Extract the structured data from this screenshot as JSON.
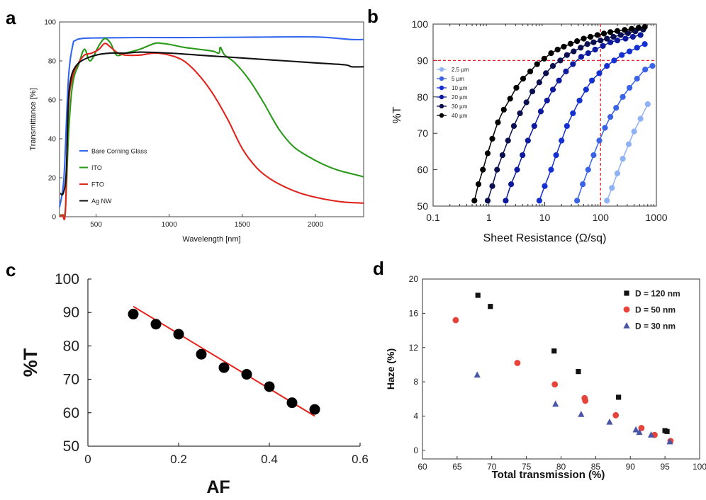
{
  "panels": [
    {
      "letter": "a"
    },
    {
      "letter": "b"
    },
    {
      "letter": "c"
    },
    {
      "letter": "d"
    }
  ],
  "chart_data": [
    {
      "type": "line",
      "xlabel": "Wavelength [nm]",
      "ylabel": "Transmittance [%]",
      "xlim": [
        250,
        2330
      ],
      "ylim": [
        0,
        100
      ],
      "xticks": [
        "500",
        "1000",
        "1500",
        "2000"
      ],
      "yticks": [
        "0",
        "20",
        "40",
        "60",
        "80",
        "100"
      ],
      "legend_position": "center-left",
      "series": [
        {
          "name": "Bare Corning Glass",
          "color": "#3366ee",
          "x": [
            250,
            280,
            310,
            340,
            360,
            400,
            500,
            800,
            1200,
            1600,
            2000,
            2250,
            2330
          ],
          "y": [
            5,
            20,
            70,
            88,
            90.5,
            91.5,
            91.8,
            92,
            92,
            92.2,
            92.3,
            91,
            91
          ]
        },
        {
          "name": "ITO",
          "color": "#2a9a1a",
          "x": [
            250,
            270,
            290,
            310,
            330,
            350,
            380,
            420,
            460,
            520,
            560,
            600,
            640,
            700,
            800,
            900,
            950,
            1000,
            1100,
            1200,
            1300,
            1340,
            1350,
            1380,
            1450,
            1550,
            1650,
            1750,
            1850,
            1950,
            2050,
            2150,
            2250,
            2330
          ],
          "y": [
            1,
            1,
            4,
            40,
            62,
            72,
            78,
            86,
            80,
            88,
            91.5,
            89,
            83,
            84,
            86,
            89,
            89,
            88.5,
            87,
            86,
            85,
            84,
            87,
            83,
            79,
            70,
            58,
            45,
            36,
            31,
            27,
            24,
            22,
            20.5
          ]
        },
        {
          "name": "FTO",
          "color": "#e0241e",
          "x": [
            250,
            270,
            290,
            310,
            340,
            380,
            420,
            470,
            520,
            560,
            600,
            650,
            700,
            800,
            900,
            1000,
            1100,
            1200,
            1300,
            1400,
            1500,
            1600,
            1700,
            1800,
            1900,
            2000,
            2100,
            2200,
            2330
          ],
          "y": [
            0,
            1,
            3,
            55,
            72,
            79,
            83,
            84,
            86,
            89,
            87,
            84,
            83,
            83,
            84,
            83,
            80,
            73,
            63,
            50,
            35,
            25,
            19,
            15,
            12,
            10,
            8.5,
            7.5,
            7
          ]
        },
        {
          "name": "Ag NW",
          "color": "#111111",
          "x": [
            255,
            275,
            295,
            310,
            325,
            350,
            400,
            500,
            600,
            700,
            800,
            1000,
            1200,
            1400,
            1600,
            1800,
            2000,
            2200,
            2250,
            2330
          ],
          "y": [
            12,
            12,
            22,
            58,
            70,
            76,
            80,
            83,
            84,
            84,
            84.5,
            84,
            83,
            82,
            81,
            80,
            79,
            78,
            77,
            77
          ]
        }
      ]
    },
    {
      "type": "line",
      "xscale": "log",
      "xlabel": "Sheet Resistance (Ω/sq)",
      "ylabel": "%T",
      "xlim": [
        0.1,
        1000
      ],
      "ylim": [
        50,
        100
      ],
      "xticks": [
        "0.1",
        "1",
        "10",
        "100",
        "1000"
      ],
      "yticks": [
        "50",
        "60",
        "70",
        "80",
        "90",
        "100"
      ],
      "reference_lines": {
        "x": 100,
        "y": 90,
        "color": "#e8202a",
        "style": "dashed"
      },
      "legend_position": "upper-left",
      "series": [
        {
          "name": "2.5 µm",
          "color": "#8fb2f5",
          "x": [
            130,
            160,
            200,
            250,
            320,
            400,
            520,
            700
          ],
          "y": [
            51.5,
            55,
            59,
            63,
            67,
            70.5,
            74,
            78
          ]
        },
        {
          "name": "5 µm",
          "color": "#3a63e6",
          "x": [
            38,
            48,
            60,
            75,
            95,
            120,
            150,
            190,
            250,
            330,
            450,
            630,
            850
          ],
          "y": [
            51.5,
            56,
            60,
            64,
            68,
            71.5,
            74.5,
            77,
            80,
            82.5,
            85,
            87.5,
            88.5
          ]
        },
        {
          "name": "10 µm",
          "color": "#1530d0",
          "x": [
            8,
            10,
            13,
            16,
            20,
            25,
            32,
            42,
            55,
            70,
            95,
            130,
            175,
            240,
            330,
            450,
            620
          ],
          "y": [
            51.5,
            55.5,
            60,
            64,
            68,
            72,
            75.5,
            79,
            82,
            84.5,
            86.5,
            88.5,
            90,
            91.5,
            92.5,
            93.5,
            94.5
          ]
        },
        {
          "name": "20 µm",
          "color": "#0d1a9e",
          "x": [
            2,
            2.5,
            3.2,
            4,
            5,
            6.5,
            8.5,
            11,
            14,
            18,
            24,
            32,
            45,
            60,
            80,
            110,
            150,
            200,
            280,
            380,
            520
          ],
          "y": [
            51.5,
            56,
            60,
            64,
            68,
            72,
            76,
            79,
            82,
            84.5,
            87,
            89,
            91,
            92,
            93,
            94,
            95,
            95.5,
            96,
            96.5,
            97
          ]
        },
        {
          "name": "30 µm",
          "color": "#0a0f50",
          "x": [
            0.95,
            1.15,
            1.4,
            1.75,
            2.2,
            2.8,
            3.6,
            4.7,
            6,
            8,
            10.5,
            14,
            19,
            25,
            33,
            44,
            58,
            75,
            100,
            130,
            170,
            230,
            310,
            420,
            580
          ],
          "y": [
            51.5,
            55.5,
            60,
            64,
            68,
            72,
            75.5,
            78.5,
            81.5,
            84,
            86.5,
            88.5,
            90,
            91.5,
            92.5,
            93.5,
            94.5,
            95,
            95.5,
            96,
            96.5,
            97,
            97.5,
            98,
            98.5
          ]
        },
        {
          "name": "40 µm",
          "color": "#000000",
          "x": [
            0.55,
            0.65,
            0.78,
            0.95,
            1.15,
            1.45,
            1.85,
            2.4,
            3.1,
            4.1,
            5.5,
            7.3,
            9.8,
            13,
            17,
            22,
            29,
            38,
            50,
            66,
            88,
            115,
            150,
            200,
            270,
            360,
            480,
            620
          ],
          "y": [
            51.5,
            56,
            60,
            64.5,
            68.5,
            73,
            76.5,
            79.5,
            82.5,
            85,
            87,
            89,
            90.5,
            92,
            93,
            93.8,
            94.6,
            95.3,
            96,
            96.5,
            97,
            97.4,
            97.8,
            98.1,
            98.4,
            98.7,
            99,
            99.2
          ]
        }
      ]
    },
    {
      "type": "scatter",
      "xlabel": "AF",
      "ylabel": "%T",
      "xlim": [
        0,
        0.6
      ],
      "ylim": [
        50,
        100
      ],
      "xticks": [
        "0",
        "0.2",
        "0.4",
        "0.6"
      ],
      "yticks": [
        "50",
        "60",
        "70",
        "80",
        "90",
        "100"
      ],
      "fit_line": {
        "color": "#e8221c",
        "x": [
          0.1,
          0.5
        ],
        "y": [
          91.8,
          59
        ]
      },
      "series": [
        {
          "color": "#000000",
          "x": [
            0.1,
            0.15,
            0.2,
            0.25,
            0.3,
            0.35,
            0.4,
            0.45,
            0.5
          ],
          "y": [
            89.5,
            86.5,
            83.5,
            77.5,
            73.5,
            71.5,
            67.8,
            63,
            61
          ]
        }
      ]
    },
    {
      "type": "scatter",
      "xlabel": "Total transmission (%)",
      "ylabel": "Haze (%)",
      "xlim": [
        60,
        100
      ],
      "ylim": [
        -1,
        20
      ],
      "xticks": [
        "60",
        "65",
        "70",
        "75",
        "80",
        "85",
        "90",
        "95",
        "100"
      ],
      "yticks": [
        "0",
        "4",
        "8",
        "12",
        "16",
        "20"
      ],
      "legend_position": "top-right",
      "series": [
        {
          "name": "D = 120 nm",
          "marker": "square",
          "color": "#111111",
          "x": [
            68,
            69.8,
            79,
            82.5,
            88.3,
            95,
            95.3
          ],
          "y": [
            18.1,
            16.8,
            11.6,
            9.2,
            6.2,
            2.3,
            2.2
          ]
        },
        {
          "name": "D = 50 nm",
          "marker": "circle",
          "color": "#e8433a",
          "x": [
            64.8,
            73.7,
            79.1,
            83.4,
            83.5,
            87.9,
            91.6,
            93.5,
            95.8
          ],
          "y": [
            15.2,
            10.2,
            7.7,
            6.1,
            5.8,
            4.1,
            2.6,
            1.8,
            1.1
          ]
        },
        {
          "name": "D = 30 nm",
          "marker": "triangle",
          "color": "#4a55a8",
          "x": [
            67.9,
            79.2,
            82.9,
            87,
            90.8,
            91.3,
            93,
            95.7
          ],
          "y": [
            8.8,
            5.4,
            4.2,
            3.3,
            2.4,
            2.1,
            1.8,
            1.0
          ]
        }
      ]
    }
  ]
}
